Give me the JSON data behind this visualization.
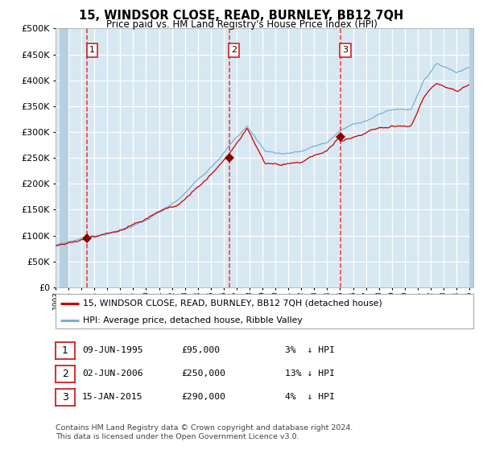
{
  "title": "15, WINDSOR CLOSE, READ, BURNLEY, BB12 7QH",
  "subtitle": "Price paid vs. HM Land Registry's House Price Index (HPI)",
  "legend_line1": "15, WINDSOR CLOSE, READ, BURNLEY, BB12 7QH (detached house)",
  "legend_line2": "HPI: Average price, detached house, Ribble Valley",
  "transactions": [
    {
      "num": 1,
      "date": "09-JUN-1995",
      "price": "£95,000",
      "pct": "3%  ↓ HPI"
    },
    {
      "num": 2,
      "date": "02-JUN-2006",
      "price": "£250,000",
      "pct": "13% ↓ HPI"
    },
    {
      "num": 3,
      "date": "15-JAN-2015",
      "price": "£290,000",
      "pct": "4%  ↓ HPI"
    }
  ],
  "transaction_dates": [
    1995.44,
    2006.42,
    2015.04
  ],
  "transaction_prices": [
    95000,
    250000,
    290000
  ],
  "ylim": [
    0,
    500000
  ],
  "yticks": [
    0,
    50000,
    100000,
    150000,
    200000,
    250000,
    300000,
    350000,
    400000,
    450000,
    500000
  ],
  "xlim_left": 1993.3,
  "xlim_right": 2025.3,
  "background_color": "#d8e8f2",
  "hatch_color": "#b8cfe0",
  "grid_color": "#ffffff",
  "hpi_color": "#7ab0d4",
  "price_color": "#cc0000",
  "vline_color": "#ee3333",
  "marker_color": "#880000",
  "footer_line1": "Contains HM Land Registry data © Crown copyright and database right 2024.",
  "footer_line2": "This data is licensed under the Open Government Licence v3.0."
}
